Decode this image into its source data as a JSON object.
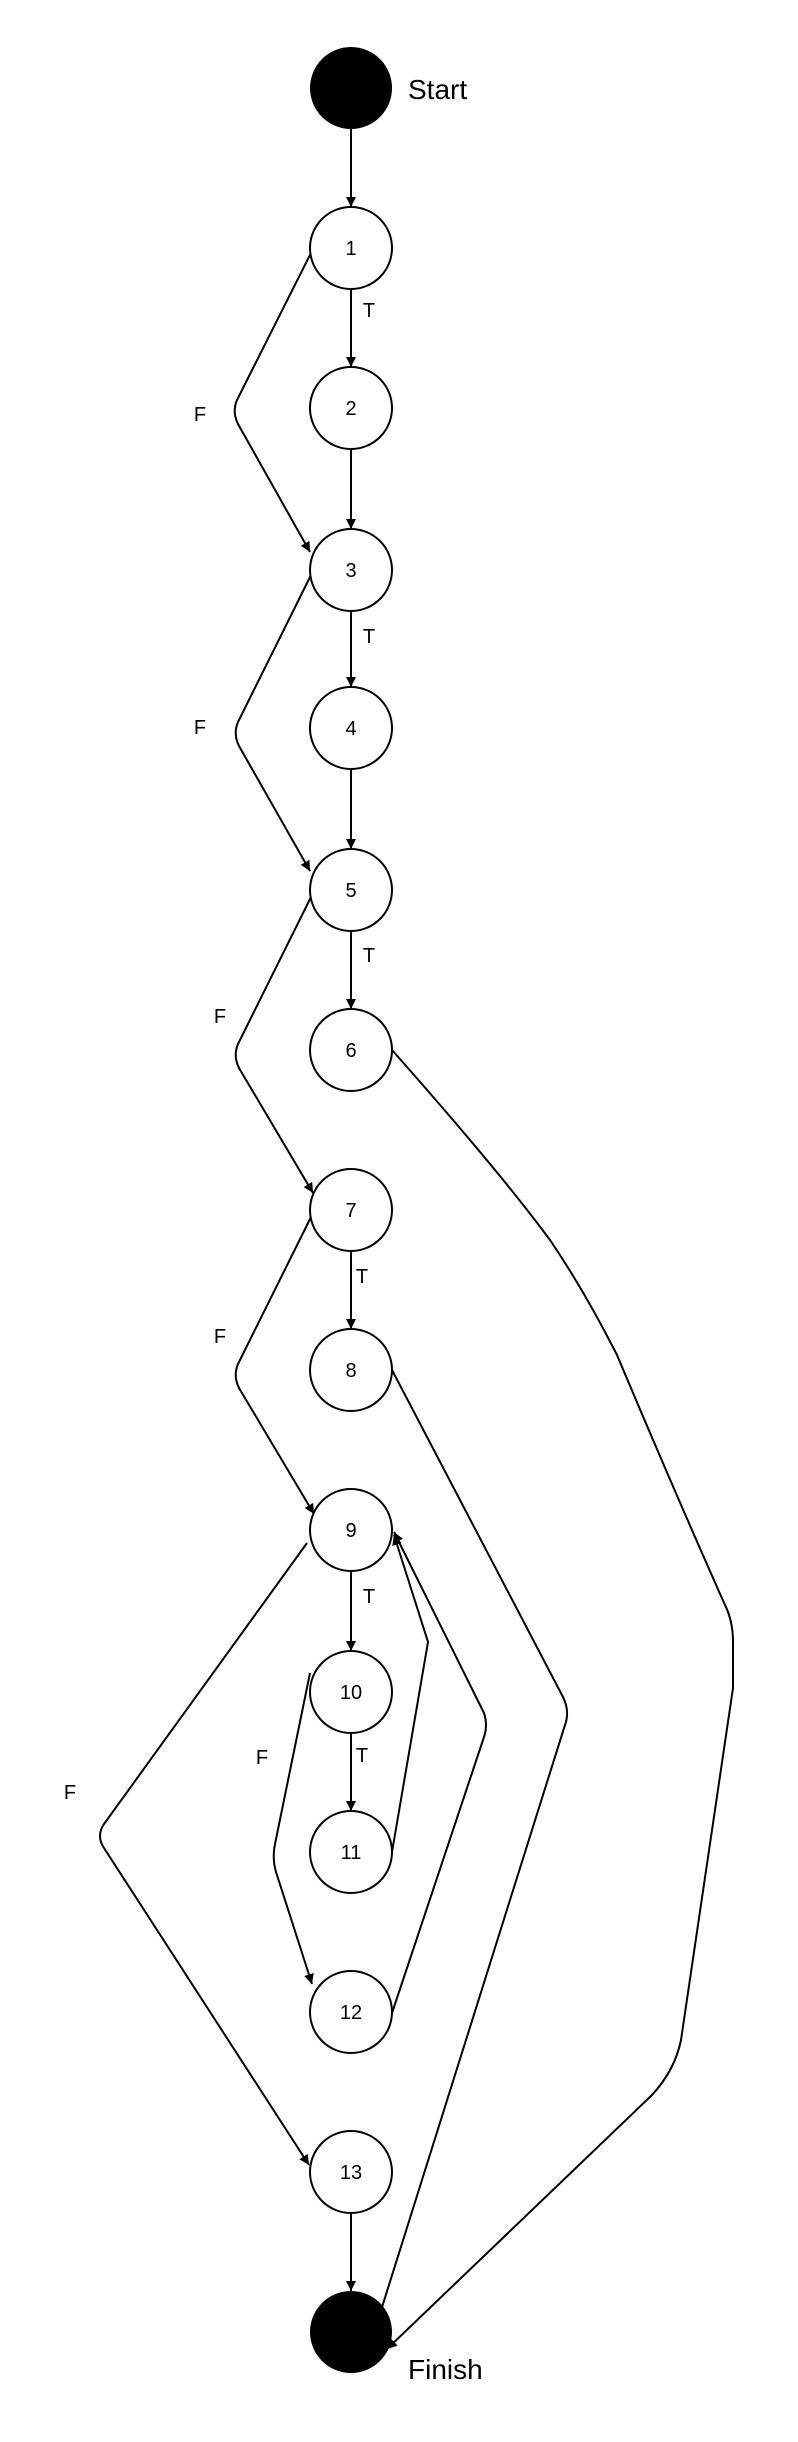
{
  "terminals": {
    "start": "Start",
    "finish": "Finish"
  },
  "nodes": {
    "n1": "1",
    "n2": "2",
    "n3": "3",
    "n4": "4",
    "n5": "5",
    "n6": "6",
    "n7": "7",
    "n8": "8",
    "n9": "9",
    "n10": "10",
    "n11": "11",
    "n12": "12",
    "n13": "13"
  },
  "edge_labels": {
    "e1_2": "T",
    "e1_3": "F",
    "e3_4": "T",
    "e3_5": "F",
    "e5_6": "T",
    "e5_7": "F",
    "e7_8": "T",
    "e7_9": "F",
    "e9_10": "T",
    "e9_13": "F",
    "e10_11": "T",
    "e10_12": "F"
  }
}
